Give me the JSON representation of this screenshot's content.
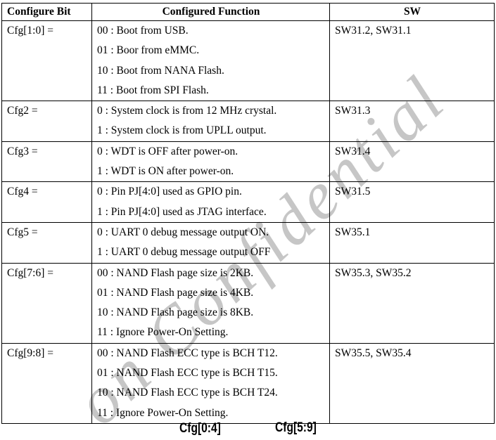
{
  "watermark": {
    "text": "on Confidential",
    "color": "#c6c6c6"
  },
  "table": {
    "headers": {
      "bit": "Configure Bit",
      "function": "Configured Function",
      "sw": "SW"
    },
    "rows": [
      {
        "bit": "Cfg[1:0] =",
        "functions": [
          "00 : Boot from USB.",
          "01 : Boor from eMMC.",
          "10 : Boot from NANA Flash.",
          "11 : Boot from SPI Flash."
        ],
        "sw": "SW31.2, SW31.1"
      },
      {
        "bit": "Cfg2 =",
        "functions": [
          "0 : System clock is from 12 MHz crystal.",
          "1 : System clock is from UPLL output."
        ],
        "sw": "SW31.3"
      },
      {
        "bit": "Cfg3 =",
        "functions": [
          "0 : WDT is OFF after power-on.",
          "1 : WDT is ON after power-on."
        ],
        "sw": "SW31.4"
      },
      {
        "bit": "Cfg4 =",
        "functions": [
          "0 : Pin PJ[4:0] used as GPIO pin.",
          "1 : Pin PJ[4:0] used as JTAG interface."
        ],
        "sw": "SW31.5"
      },
      {
        "bit": "Cfg5 =",
        "functions": [
          "0 : UART 0 debug message output ON.",
          "1 : UART 0 debug message output OFF"
        ],
        "sw": "SW35.1"
      },
      {
        "bit": "Cfg[7:6] =",
        "functions": [
          "00 : NAND Flash page size is 2KB.",
          "01 : NAND Flash page size is 4KB.",
          "10 : NAND Flash page size is 8KB.",
          "11 : Ignore Power-On Setting."
        ],
        "sw": "SW35.3, SW35.2"
      },
      {
        "bit": "Cfg[9:8] =",
        "functions": [
          "00 : NAND Flash ECC type is BCH T12.",
          "01 : NAND Flash ECC type is BCH T15.",
          "10 : NAND Flash ECC type is BCH T24.",
          "11 : Ignore Power-On Setting."
        ],
        "sw": "SW35.5, SW35.4"
      }
    ]
  },
  "figure_labels": {
    "left": "Cfg[0:4]",
    "right": "Cfg[5:9]"
  }
}
